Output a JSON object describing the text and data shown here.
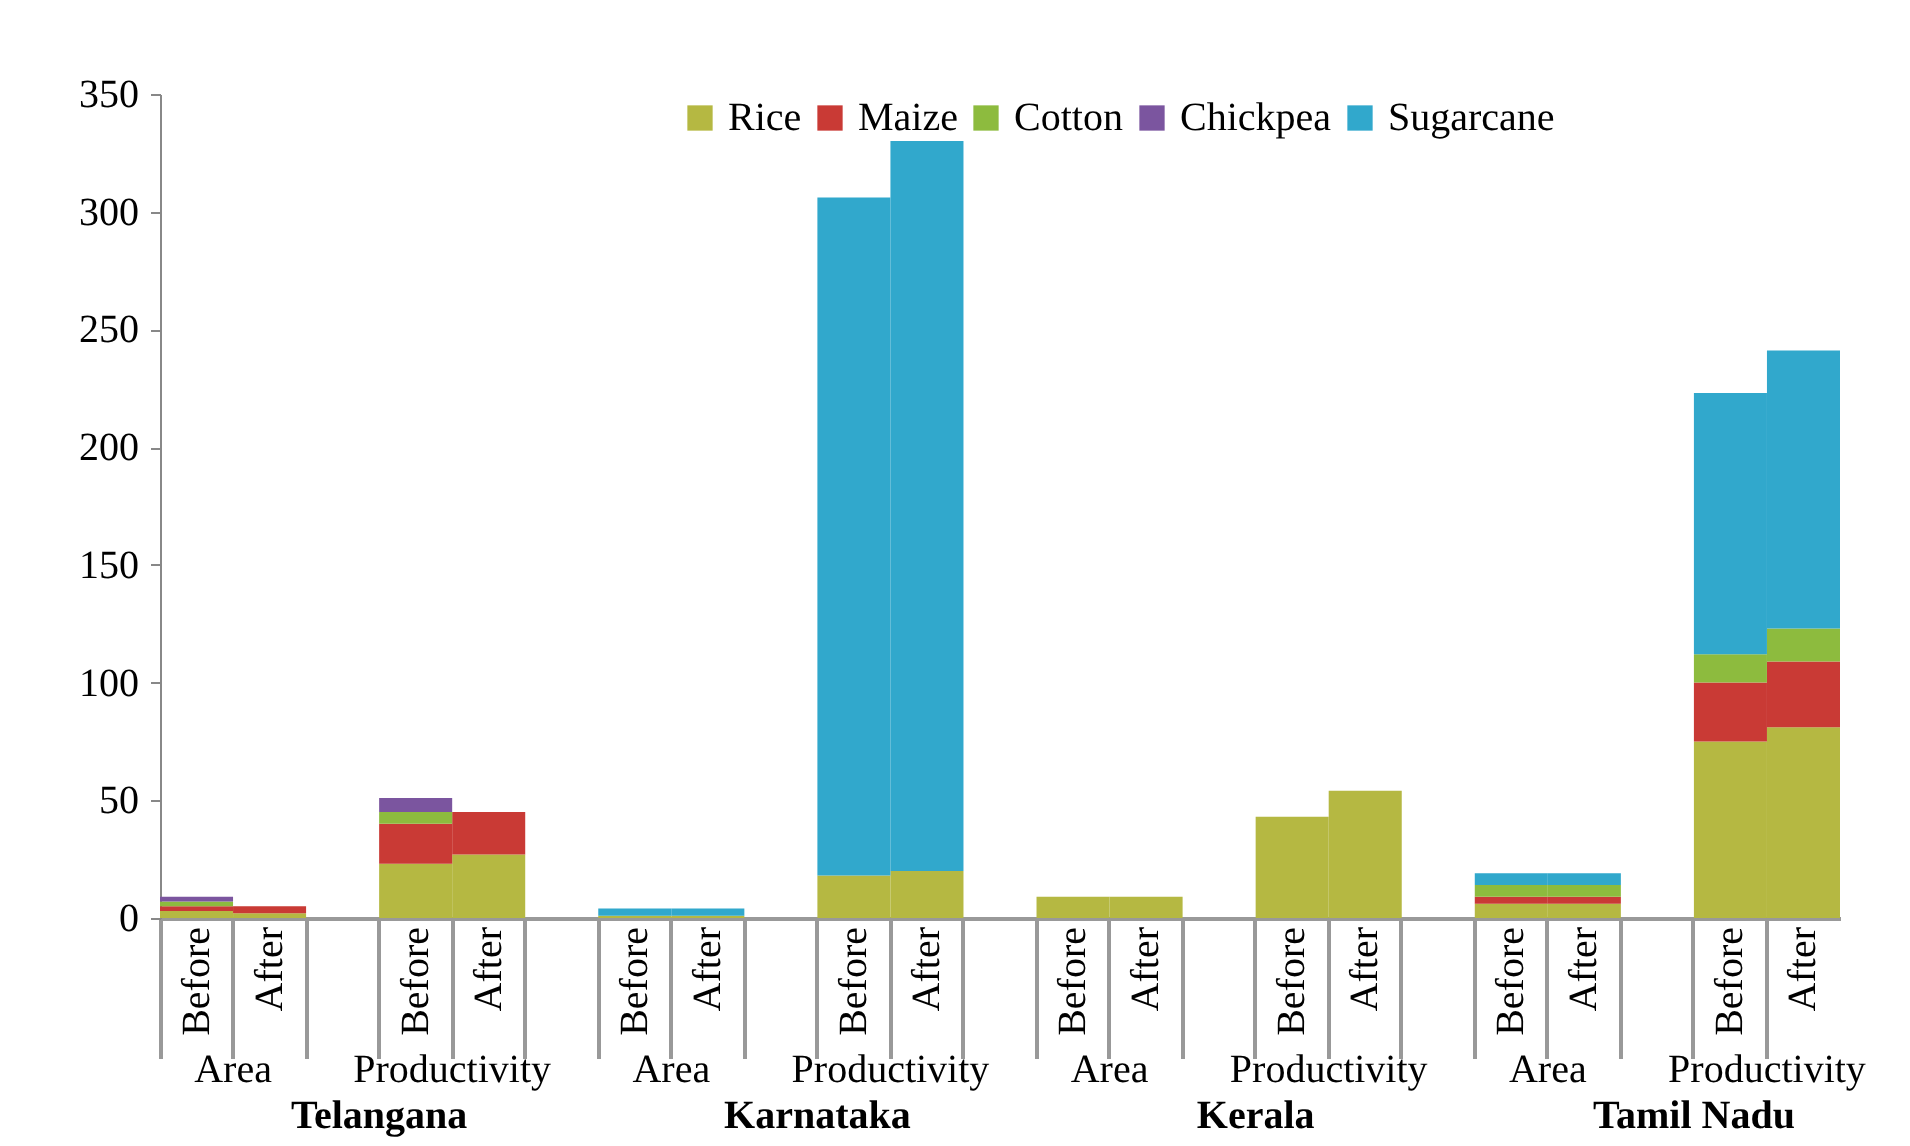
{
  "chart_data": {
    "type": "bar",
    "stacked": true,
    "legend": "top",
    "grid": false,
    "categories": [
      "Before",
      "After",
      null,
      "Before",
      "After",
      null,
      "Before",
      "After",
      null,
      "Before",
      "After",
      null,
      "Before",
      "After",
      null,
      "Before",
      "After",
      null,
      "Before",
      "After",
      null,
      "Before",
      "After"
    ],
    "ylim": [
      0,
      350
    ],
    "yticks": [
      0,
      50,
      100,
      150,
      200,
      250,
      300,
      350
    ],
    "series": [
      {
        "name": "Rice",
        "color": "#b5b842",
        "values": [
          3,
          2,
          null,
          23,
          27,
          null,
          1,
          1,
          null,
          18,
          20,
          null,
          9,
          9,
          null,
          43,
          54,
          null,
          6,
          6,
          null,
          75,
          81
        ]
      },
      {
        "name": "Maize",
        "color": "#c93a35",
        "values": [
          2,
          3,
          null,
          17,
          18,
          null,
          null,
          null,
          null,
          null,
          null,
          null,
          null,
          null,
          null,
          null,
          null,
          null,
          3,
          3,
          null,
          25,
          28
        ]
      },
      {
        "name": "Cotton",
        "color": "#8dbb3e",
        "values": [
          2,
          null,
          null,
          5,
          null,
          null,
          null,
          null,
          null,
          null,
          null,
          null,
          null,
          null,
          null,
          null,
          null,
          null,
          5,
          5,
          null,
          12,
          14
        ]
      },
      {
        "name": "Chickpea",
        "color": "#7b559f",
        "values": [
          2,
          null,
          null,
          6,
          null,
          null,
          null,
          null,
          null,
          null,
          null,
          null,
          null,
          null,
          null,
          null,
          null,
          null,
          null,
          null,
          null,
          null,
          null
        ]
      },
      {
        "name": "Sugarcane",
        "color": "#31a8cc",
        "values": [
          null,
          null,
          null,
          null,
          null,
          null,
          3,
          3,
          null,
          288,
          310,
          null,
          null,
          null,
          null,
          null,
          null,
          null,
          5,
          5,
          null,
          111,
          118
        ]
      }
    ],
    "annotations": [
      "Area",
      "Productivity",
      "Telangana",
      "Area",
      "Productivity",
      "Karnataka",
      "Area",
      "Productivity",
      "Kerala",
      "Area",
      "Productivity",
      "Tamil Nadu"
    ]
  }
}
